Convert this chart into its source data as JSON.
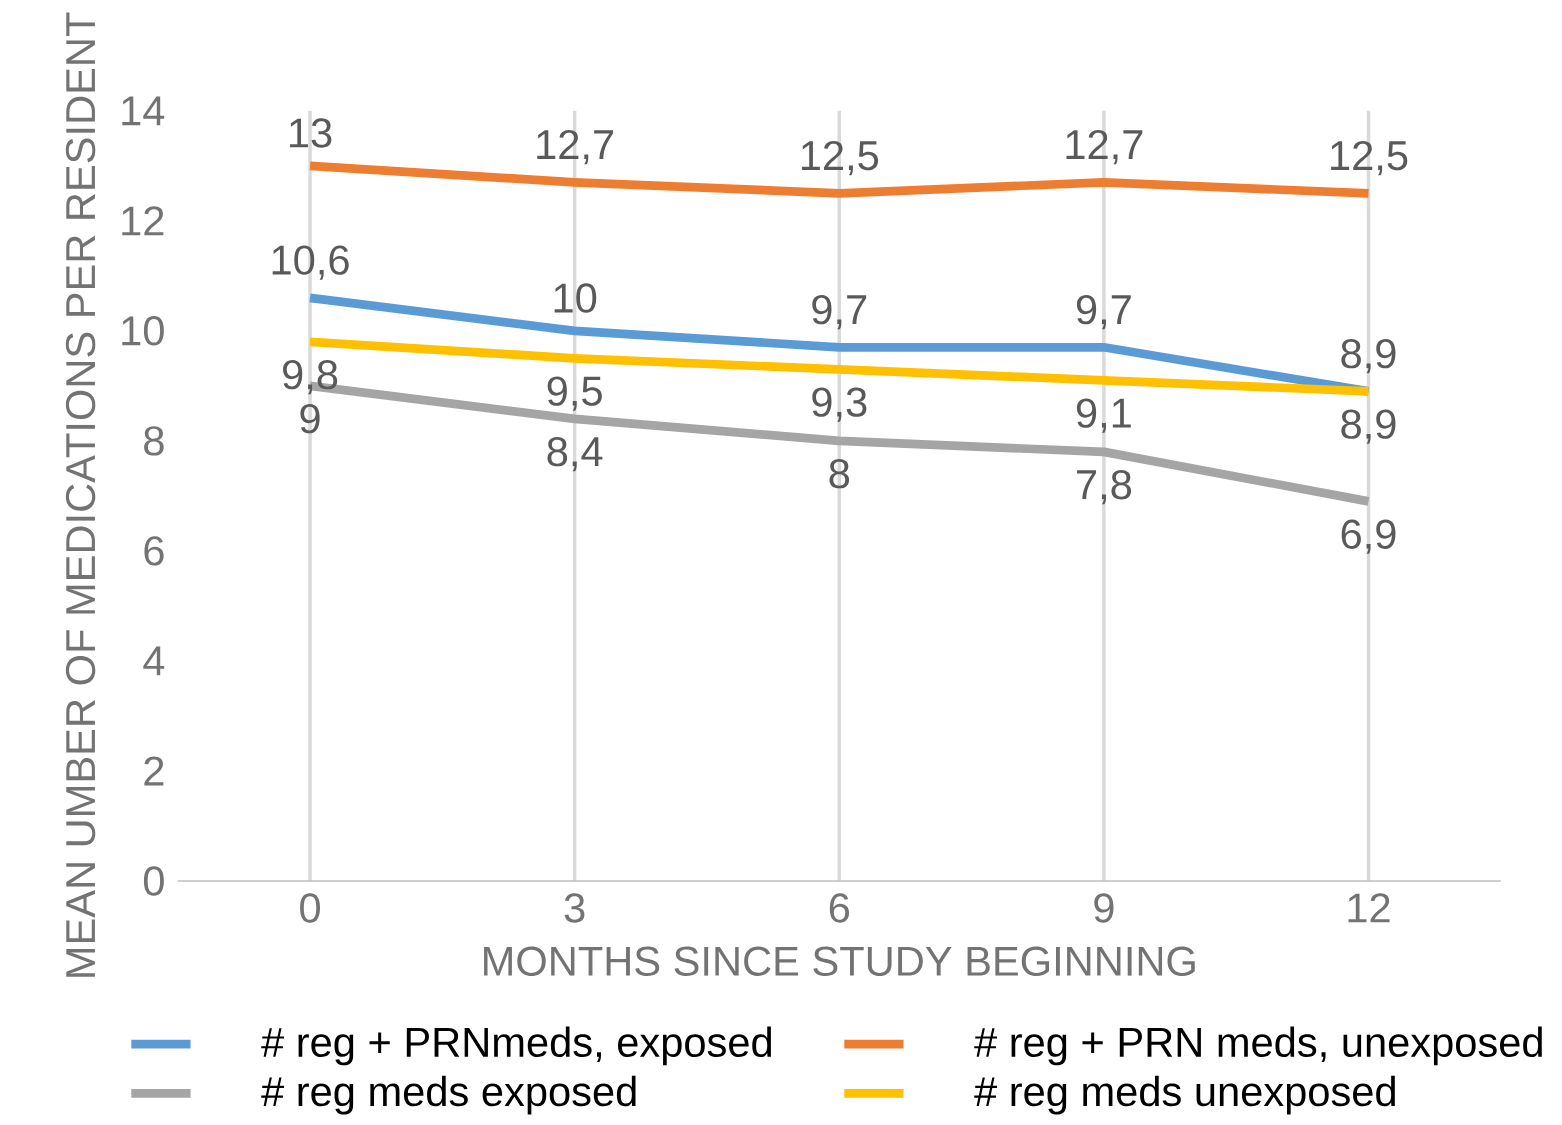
{
  "chart_data": {
    "type": "line",
    "xlabel": "MONTHS SINCE STUDY BEGINNING",
    "ylabel": "MEAN UMBER OF MEDICATIONS PER RESIDENT",
    "categories": [
      "0",
      "3",
      "6",
      "9",
      "12"
    ],
    "series": [
      {
        "name": "# reg + PRNmeds, exposed",
        "color": "#5b9bd5",
        "values": [
          10.6,
          10,
          9.7,
          9.7,
          8.9
        ],
        "value_labels": [
          "10,6",
          "10",
          "9,7",
          "9,7",
          "8,9"
        ]
      },
      {
        "name": "# reg + PRN meds, unexposed",
        "color": "#ed7d31",
        "values": [
          13,
          12.7,
          12.5,
          12.7,
          12.5
        ],
        "value_labels": [
          "13",
          "12,7",
          "12,5",
          "12,7",
          "12,5"
        ]
      },
      {
        "name": "# reg meds exposed",
        "color": "#a5a5a5",
        "values": [
          9,
          8.4,
          8,
          7.8,
          6.9
        ],
        "value_labels": [
          "9",
          "8,4",
          "8",
          "7,8",
          "6,9"
        ]
      },
      {
        "name": "# reg meds unexposed",
        "color": "#ffc000",
        "values": [
          9.8,
          9.5,
          9.3,
          9.1,
          8.9
        ],
        "value_labels": [
          "9,8",
          "9,5",
          "9,3",
          "9,1",
          "8,9"
        ]
      }
    ],
    "ylim": [
      0,
      14
    ],
    "yticks": [
      0,
      2,
      4,
      6,
      8,
      10,
      12,
      14
    ],
    "grid": "x",
    "legend": "bottom",
    "marker": "none",
    "line_style": "solid"
  }
}
